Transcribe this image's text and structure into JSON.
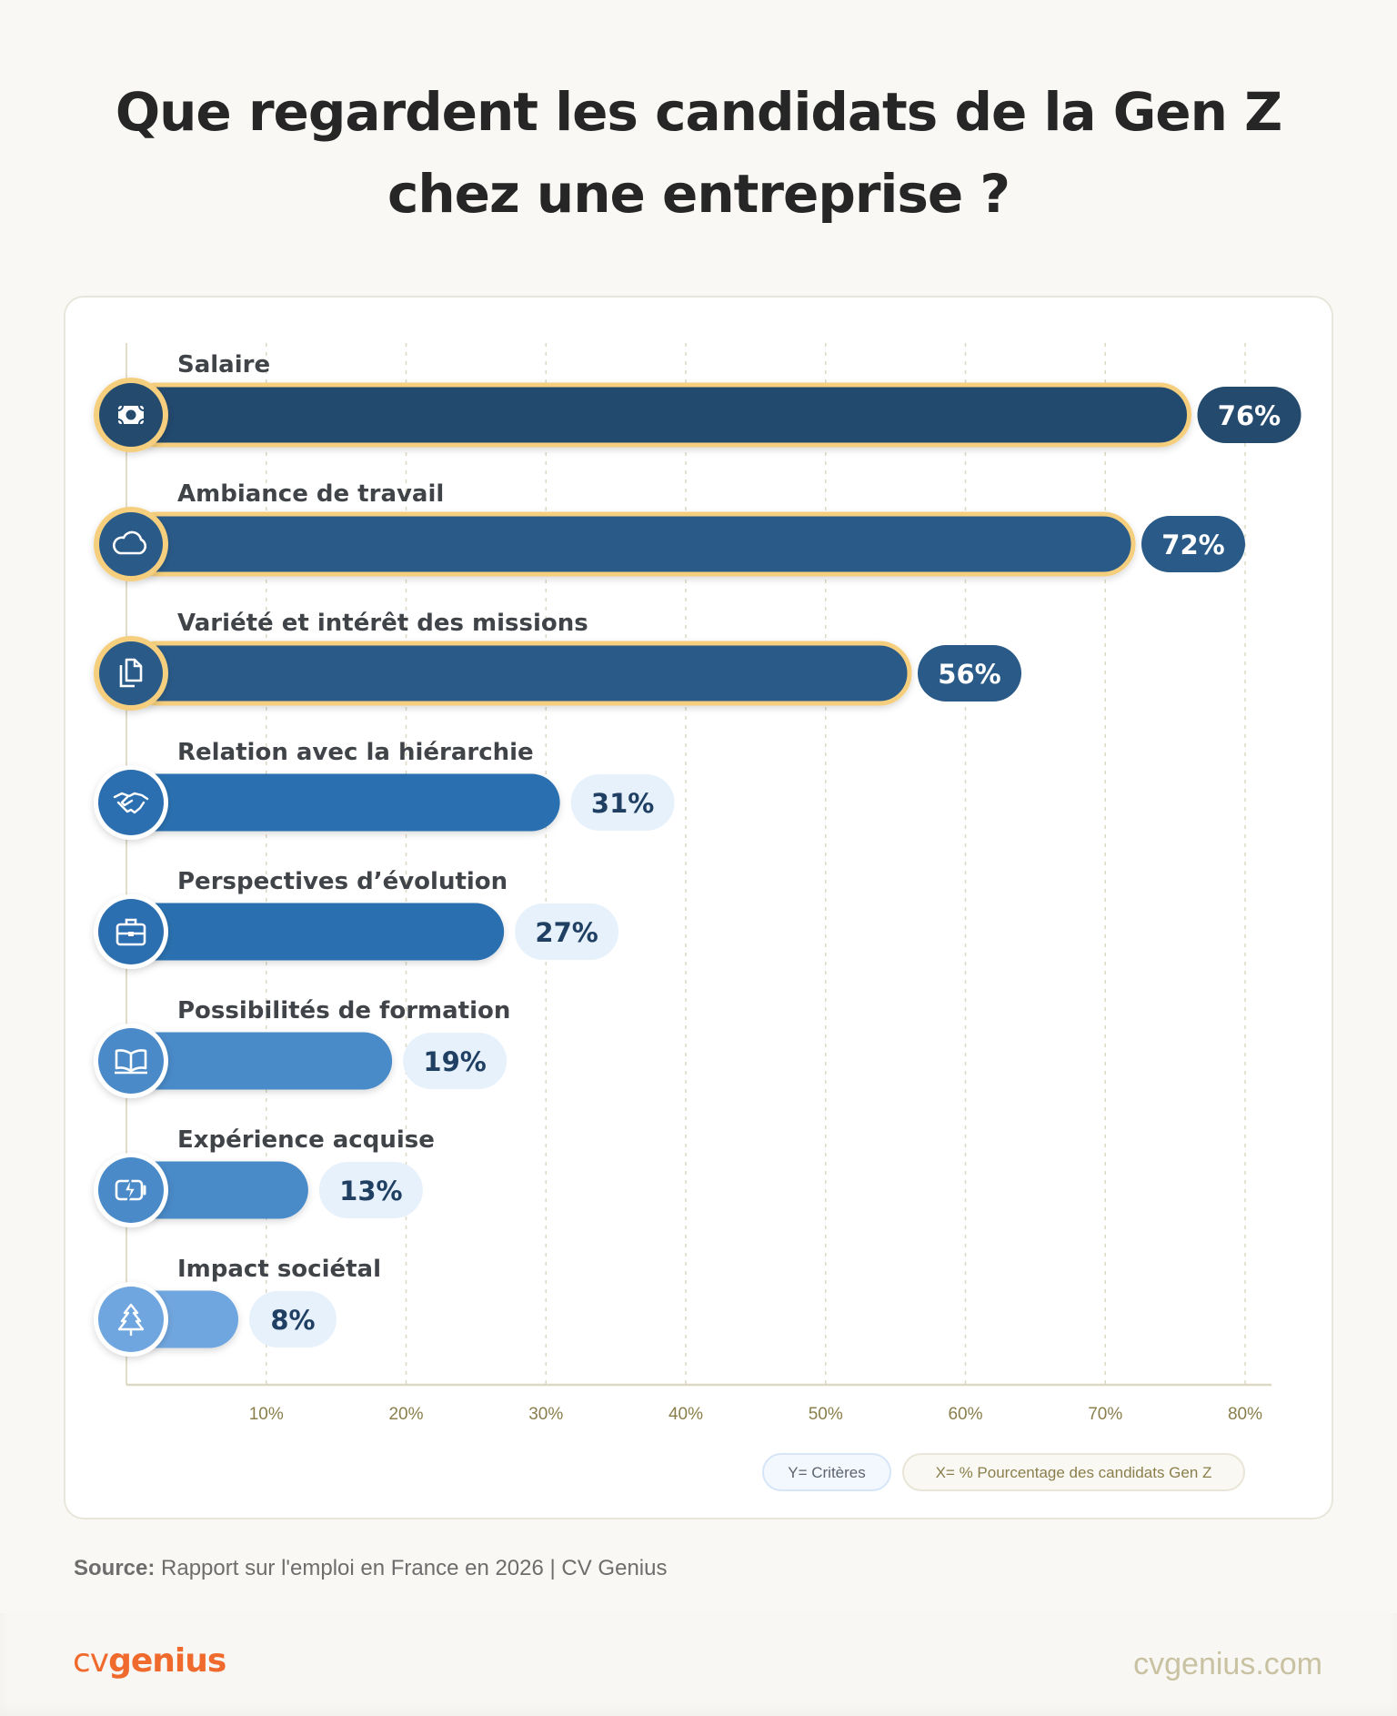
{
  "title_lines": [
    "Que regardent les candidats de la Gen Z",
    "chez une entreprise ?"
  ],
  "chart_data": {
    "type": "bar",
    "orientation": "horizontal",
    "categories": [
      "Salaire",
      "Ambiance de travail",
      "Variété et intérêt des missions",
      "Relation avec la hiérarchie",
      "Perspectives d’évolution",
      "Possibilités de formation",
      "Expérience acquise",
      "Impact sociétal"
    ],
    "values": [
      76,
      72,
      56,
      31,
      27,
      19,
      13,
      8
    ],
    "value_labels": [
      "76%",
      "72%",
      "56%",
      "31%",
      "27%",
      "19%",
      "13%",
      "8%"
    ],
    "icons": [
      "banknote-icon",
      "cloud-icon",
      "documents-icon",
      "handshake-icon",
      "briefcase-icon",
      "book-icon",
      "battery-bolt-icon",
      "tree-icon"
    ],
    "highlighted": [
      true,
      true,
      true,
      false,
      false,
      false,
      false,
      false
    ],
    "bar_colors": [
      "#244a6e",
      "#2a5a88",
      "#2a5a88",
      "#2c6fb0",
      "#2c6fb0",
      "#4a8ac8",
      "#4a8ac8",
      "#6fa6df"
    ],
    "highlight_color": "#f5cf7e",
    "xlim": [
      0,
      80
    ],
    "xticks": [
      10,
      20,
      30,
      40,
      50,
      60,
      70,
      80
    ],
    "xtick_labels": [
      "10%",
      "20%",
      "30%",
      "40%",
      "50%",
      "60%",
      "70%",
      "80%"
    ],
    "grid": true,
    "ylabel": "Y= Critères",
    "xlabel": "X= % Pourcentage des candidats Gen Z",
    "legend_placement": "bottom-right"
  },
  "source": {
    "label": "Source:",
    "text": "Rapport sur l'emploi en France en 2026 | CV Genius"
  },
  "footer": {
    "logo_cv": "cv",
    "logo_genius": "genius",
    "site": "cvgenius.com"
  }
}
